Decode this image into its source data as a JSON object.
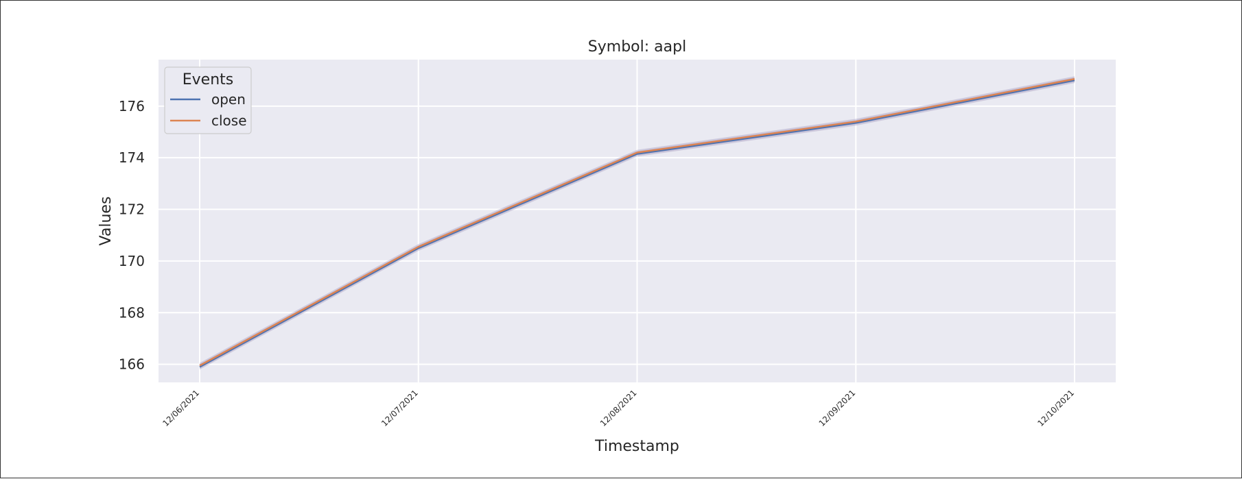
{
  "chart_data": {
    "type": "line",
    "title": "Symbol: aapl",
    "xlabel": "Timestamp",
    "ylabel": "Values",
    "x": [
      "12/06/2021",
      "12/07/2021",
      "12/08/2021",
      "12/09/2021",
      "12/10/2021"
    ],
    "ylim": [
      165.3,
      177.8
    ],
    "yticks": [
      166,
      168,
      170,
      172,
      174,
      176
    ],
    "grid": true,
    "legend": {
      "title": "Events",
      "placement": "top-left"
    },
    "series": [
      {
        "name": "open",
        "color": "#4c72b0",
        "values": [
          165.9,
          170.5,
          174.15,
          175.35,
          177.0
        ]
      },
      {
        "name": "close",
        "color": "#dd8452",
        "values": [
          165.95,
          170.55,
          174.2,
          175.4,
          177.05
        ]
      }
    ],
    "band_color": "#9a8fb8"
  }
}
